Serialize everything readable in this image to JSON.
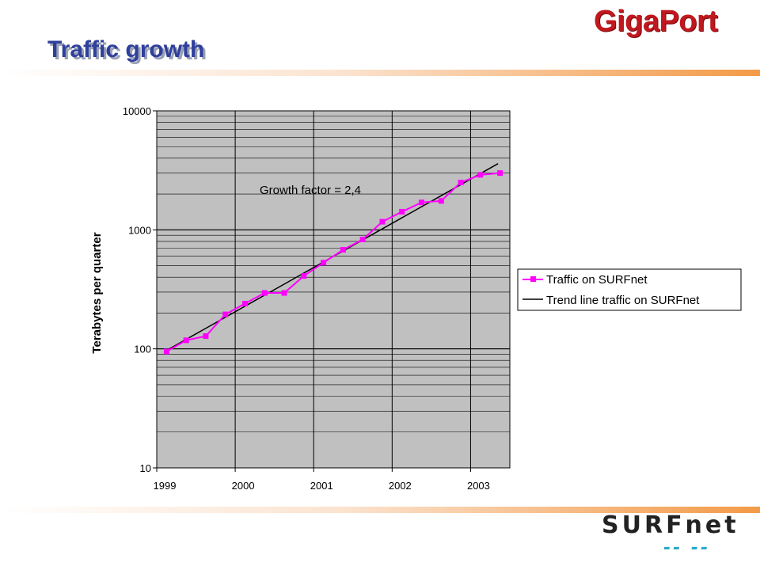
{
  "header": {
    "title": "Traffic growth",
    "brand_logo": "GigaPort"
  },
  "footer": {
    "logo_text": "SURFnet"
  },
  "colors": {
    "title": "#2f3f9c",
    "series_traffic": "#ff00ff",
    "series_trend": "#000000",
    "plot_background": "#c0c0c0",
    "band_accent": "#f39a47",
    "gigaport_red": "#c0181e"
  },
  "chart_data": {
    "type": "line",
    "ylabel": "Terabytes per quarter",
    "yscale": "log",
    "ylim": [
      10,
      10000
    ],
    "ytick_labels": [
      "10000",
      "1000",
      "100",
      "10"
    ],
    "xlim": [
      1999,
      2003.5
    ],
    "xtick_labels": [
      "1999",
      "2000",
      "2001",
      "2002",
      "2003"
    ],
    "grid": true,
    "legend_position": "right",
    "annotation": "Growth factor = 2,4",
    "series": [
      {
        "name": "Traffic on SURFnet",
        "marker": "square",
        "x": [
          1999.125,
          1999.375,
          1999.625,
          1999.875,
          2000.125,
          2000.375,
          2000.625,
          2000.875,
          2001.125,
          2001.375,
          2001.625,
          2001.875,
          2002.125,
          2002.375,
          2002.625,
          2002.875,
          2003.125,
          2003.375
        ],
        "y": [
          95,
          118,
          128,
          195,
          240,
          295,
          295,
          410,
          530,
          680,
          830,
          1170,
          1420,
          1700,
          1750,
          2500,
          2900,
          3000
        ]
      },
      {
        "name": "Trend line traffic on SURFnet",
        "marker": "none",
        "x": [
          1999.1,
          2003.35
        ],
        "y": [
          95,
          3600
        ]
      }
    ]
  }
}
